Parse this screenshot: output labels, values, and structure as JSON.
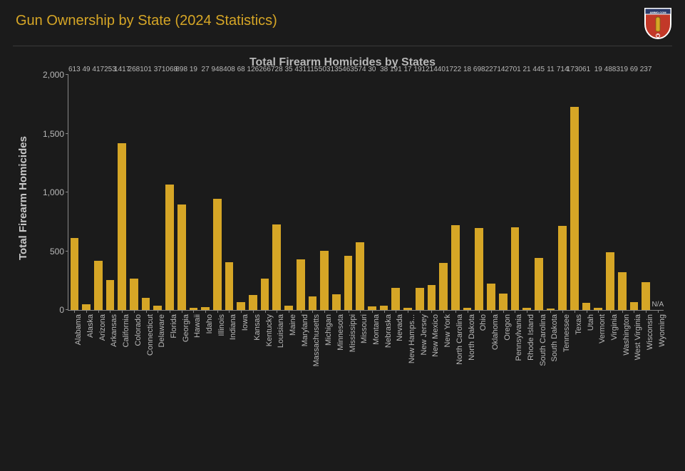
{
  "page_title": "Gun Ownership by State (2024 Statistics)",
  "logo_alt": "AMMO.COM",
  "chart": {
    "type": "bar",
    "title": "Total Firearm Homicides by States",
    "y_axis_label": "Total Firearm Homicides",
    "ylim": [
      0,
      2000
    ],
    "ytick_step": 500,
    "y_ticks": [
      0,
      500,
      1000,
      1500,
      2000
    ],
    "y_tick_labels": [
      "0",
      "500",
      "1,000",
      "1,500",
      "2,000"
    ],
    "bar_color": "#d6a626",
    "background_color": "#1b1b1b",
    "axis_color": "#888888",
    "text_color": "#b8b8b8",
    "bar_width": 0.7,
    "label_fontsize": 11,
    "title_fontsize": 16,
    "categories": [
      "Alabama",
      "Alaska",
      "Arizona",
      "Arkansas",
      "California",
      "Colorado",
      "Connecticut",
      "Delaware",
      "Florida",
      "Georgia",
      "Hawaii",
      "Idaho",
      "Illinois",
      "Indiana",
      "Iowa",
      "Kansas",
      "Kentucky",
      "Louisiana",
      "Maine",
      "Maryland",
      "Massachusetts",
      "Michigan",
      "Minnesota",
      "Mississippi",
      "Missouri",
      "Montana",
      "Nebraska",
      "Nevada",
      "New Hamps...",
      "New Jersey",
      "New Mexico",
      "New York",
      "North Carolina",
      "North Dakota",
      "Ohio",
      "Oklahoma",
      "Oregon",
      "Pennsylvania",
      "Rhode Island",
      "South Carolina",
      "South Dakota",
      "Tennessee",
      "Texas",
      "Utah",
      "Vermont",
      "Virginia",
      "Washington",
      "West Virginia",
      "Wisconsin",
      "Wyoming"
    ],
    "values": [
      613,
      49,
      417,
      253,
      1417,
      268,
      101,
      37,
      1068,
      898,
      19,
      27,
      948,
      408,
      68,
      126,
      266,
      728,
      35,
      431,
      115,
      503,
      135,
      463,
      574,
      30,
      38,
      191,
      17,
      191,
      214,
      401,
      722,
      18,
      698,
      227,
      142,
      701,
      21,
      445,
      11,
      714,
      1730,
      61,
      19,
      488,
      319,
      69,
      237,
      null
    ],
    "value_labels": [
      "613",
      "49",
      "417",
      "253",
      "1417",
      "268",
      "101",
      "37",
      "1068",
      "898",
      "19",
      "27",
      "948",
      "408",
      "68",
      "126",
      "266",
      "728",
      "35",
      "431",
      "115",
      "503",
      "135",
      "463",
      "574",
      "30",
      "38",
      "191",
      "17",
      "191",
      "214",
      "401",
      "722",
      "18",
      "698",
      "227",
      "142",
      "701",
      "21",
      "445",
      "11",
      "714",
      "1730",
      "61",
      "19",
      "488",
      "319",
      "69",
      "237",
      "N/A"
    ]
  }
}
